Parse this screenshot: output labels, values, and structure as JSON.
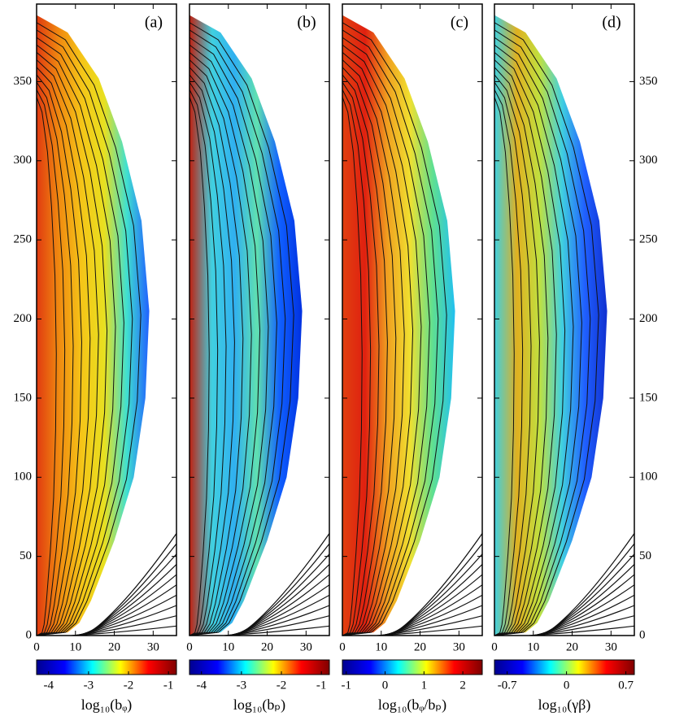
{
  "chart_data": [
    {
      "type": "contour",
      "panel_label": "(a)",
      "xlim": [
        0,
        36
      ],
      "xticks": [
        0,
        10,
        20,
        30
      ],
      "ylim": [
        0,
        399
      ],
      "yticks": [
        0,
        50,
        100,
        150,
        200,
        250,
        300,
        350
      ],
      "ytick_labels": "left",
      "field_colors": [
        "#e03a10",
        "#f08a10",
        "#f5c518",
        "#e8e020",
        "#40e0d0",
        "#2060ff"
      ],
      "colorbar": {
        "label": "log₁₀(bᵩ)",
        "clim": [
          -4.3,
          -0.8
        ],
        "ticks": [
          -4,
          -3,
          -2,
          -1
        ],
        "colors": [
          "#00008f",
          "#0000ff",
          "#00ffff",
          "#ffff00",
          "#ff0000",
          "#800000"
        ]
      }
    },
    {
      "type": "contour",
      "panel_label": "(b)",
      "xlim": [
        0,
        36
      ],
      "xticks": [
        0,
        10,
        20,
        30
      ],
      "ylim": [
        0,
        399
      ],
      "yticks": [
        0,
        50,
        100,
        150,
        200,
        250,
        300,
        350
      ],
      "ytick_labels": "none",
      "field_colors": [
        "#c02010",
        "#40d0e0",
        "#30b0f0",
        "#60e0b0",
        "#1060ff",
        "#0030e0"
      ],
      "colorbar": {
        "label": "log₁₀(bₚ)",
        "clim": [
          -4.3,
          -0.8
        ],
        "ticks": [
          -4,
          -3,
          -2,
          -1
        ],
        "colors": [
          "#00008f",
          "#0000ff",
          "#00ffff",
          "#ffff00",
          "#ff0000",
          "#800000"
        ]
      }
    },
    {
      "type": "contour",
      "panel_label": "(c)",
      "xlim": [
        0,
        36
      ],
      "xticks": [
        0,
        10,
        20,
        30
      ],
      "ylim": [
        0,
        399
      ],
      "yticks": [
        0,
        50,
        100,
        150,
        200,
        250,
        300,
        350
      ],
      "ytick_labels": "none",
      "field_colors": [
        "#e04010",
        "#e02010",
        "#f0a020",
        "#f0e030",
        "#60e090",
        "#20c0f0"
      ],
      "colorbar": {
        "label": "log₁₀(bᵩ/bₚ)",
        "clim": [
          -1.1,
          2.5
        ],
        "ticks": [
          -1,
          0,
          1,
          2
        ],
        "colors": [
          "#00008f",
          "#0000ff",
          "#00ffff",
          "#ffff00",
          "#ff0000",
          "#800000"
        ]
      }
    },
    {
      "type": "contour",
      "panel_label": "(d)",
      "xlim": [
        0,
        36
      ],
      "xticks": [
        0,
        10,
        20,
        30
      ],
      "ylim": [
        0,
        399
      ],
      "yticks": [
        0,
        50,
        100,
        150,
        200,
        250,
        300,
        350
      ],
      "ytick_labels": "right",
      "field_colors": [
        "#40d0e0",
        "#e0b020",
        "#c0e040",
        "#40d0e0",
        "#2060ff",
        "#1030d0"
      ],
      "colorbar": {
        "label": "log₁₀(γβ)",
        "clim": [
          -0.85,
          0.8
        ],
        "ticks": [
          -0.7,
          0,
          0.7
        ],
        "colors": [
          "#00008f",
          "#0000ff",
          "#00ffff",
          "#ffff00",
          "#ff0000",
          "#800000"
        ]
      }
    }
  ]
}
